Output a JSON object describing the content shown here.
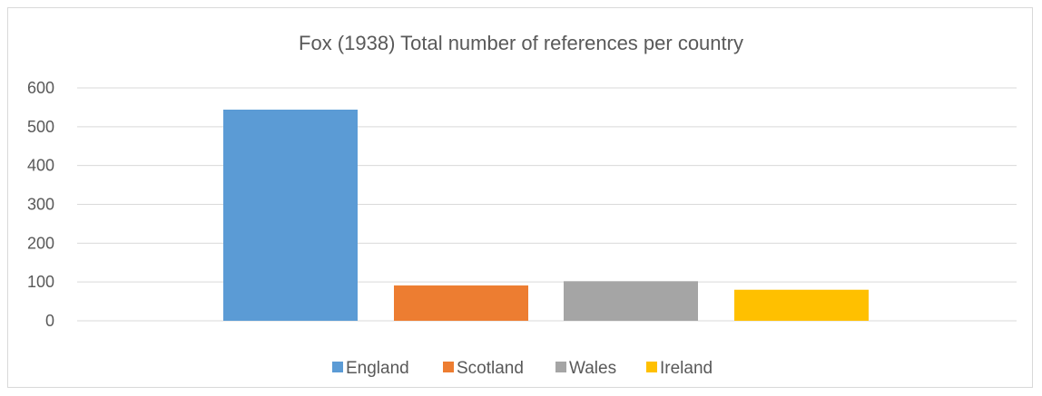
{
  "chart_data": {
    "type": "bar",
    "title": "Fox (1938) Total number of references per country",
    "xlabel": "",
    "ylabel": "",
    "ylim": [
      0,
      600
    ],
    "yticks": [
      0,
      100,
      200,
      300,
      400,
      500,
      600
    ],
    "grid": true,
    "legend_position": "bottom",
    "series": [
      {
        "name": "England",
        "value": 544,
        "color": "#5b9bd5"
      },
      {
        "name": "Scotland",
        "value": 91,
        "color": "#ed7d31"
      },
      {
        "name": "Wales",
        "value": 102,
        "color": "#a5a5a5"
      },
      {
        "name": "Ireland",
        "value": 80,
        "color": "#ffc000"
      }
    ]
  }
}
